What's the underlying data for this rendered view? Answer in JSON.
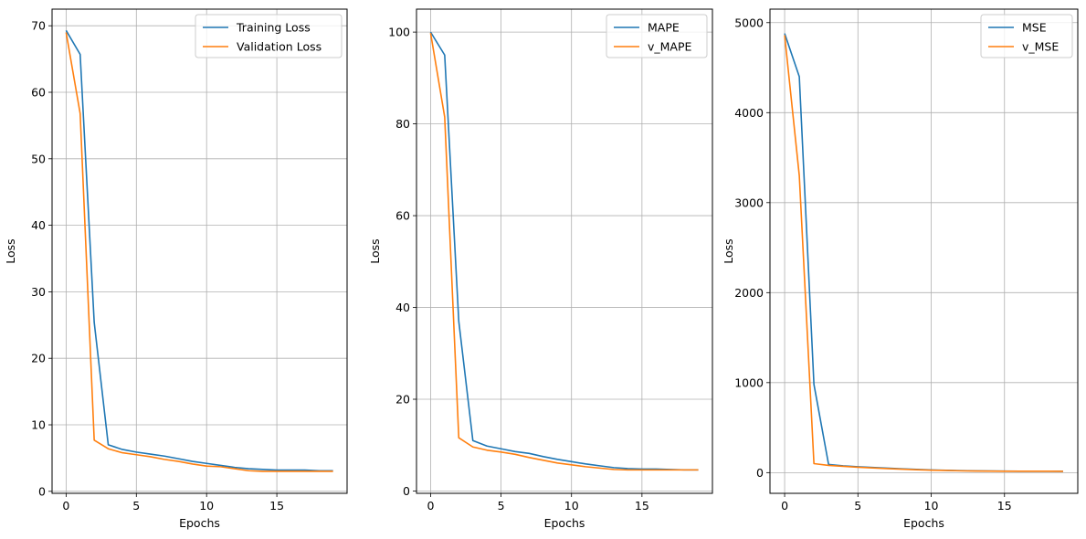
{
  "colors": {
    "series_1": "#1f77b4",
    "series_2": "#ff7f0e",
    "grid": "#b0b0b0",
    "axes": "#000000"
  },
  "chart_data": [
    {
      "type": "line",
      "title": "",
      "xlabel": "Epochs",
      "ylabel": "Loss",
      "xlim": [
        -1,
        20
      ],
      "ylim": [
        -0.3,
        72.5
      ],
      "xticks": [
        0,
        5,
        10,
        15
      ],
      "yticks": [
        0,
        10,
        20,
        30,
        40,
        50,
        60,
        70
      ],
      "grid": true,
      "legend_position": "upper right",
      "x": [
        0,
        1,
        2,
        3,
        4,
        5,
        6,
        7,
        8,
        9,
        10,
        11,
        12,
        13,
        14,
        15,
        16,
        17,
        18,
        19
      ],
      "series": [
        {
          "name": "Training Loss",
          "values": [
            69.3,
            65.7,
            25.4,
            7.0,
            6.3,
            5.9,
            5.6,
            5.3,
            4.9,
            4.5,
            4.2,
            3.9,
            3.6,
            3.4,
            3.3,
            3.2,
            3.2,
            3.2,
            3.1,
            3.1
          ]
        },
        {
          "name": "Validation Loss",
          "values": [
            69.0,
            56.8,
            7.7,
            6.4,
            5.8,
            5.5,
            5.2,
            4.8,
            4.5,
            4.1,
            3.8,
            3.7,
            3.4,
            3.1,
            3.0,
            3.0,
            3.0,
            3.0,
            3.0,
            3.0
          ]
        }
      ]
    },
    {
      "type": "line",
      "title": "",
      "xlabel": "Epochs",
      "ylabel": "Loss",
      "xlim": [
        -1,
        20
      ],
      "ylim": [
        -0.5,
        105
      ],
      "xticks": [
        0,
        5,
        10,
        15
      ],
      "yticks": [
        0,
        20,
        40,
        60,
        80,
        100
      ],
      "grid": true,
      "legend_position": "upper right",
      "x": [
        0,
        1,
        2,
        3,
        4,
        5,
        6,
        7,
        8,
        9,
        10,
        11,
        12,
        13,
        14,
        15,
        16,
        17,
        18,
        19
      ],
      "series": [
        {
          "name": "MAPE",
          "values": [
            100.0,
            95.0,
            37.0,
            11.0,
            9.8,
            9.2,
            8.6,
            8.2,
            7.5,
            6.9,
            6.4,
            5.9,
            5.5,
            5.1,
            4.9,
            4.8,
            4.8,
            4.7,
            4.6,
            4.6
          ]
        },
        {
          "name": "v_MAPE",
          "values": [
            99.8,
            81.5,
            11.6,
            9.6,
            8.9,
            8.5,
            8.0,
            7.3,
            6.7,
            6.1,
            5.7,
            5.3,
            5.0,
            4.7,
            4.6,
            4.6,
            4.6,
            4.6,
            4.6,
            4.6
          ]
        }
      ]
    },
    {
      "type": "line",
      "title": "",
      "xlabel": "Epochs",
      "ylabel": "Loss",
      "xlim": [
        -1,
        20
      ],
      "ylim": [
        -230,
        5150
      ],
      "xticks": [
        0,
        5,
        10,
        15
      ],
      "yticks": [
        0,
        1000,
        2000,
        3000,
        4000,
        5000
      ],
      "grid": true,
      "legend_position": "upper right",
      "x": [
        0,
        1,
        2,
        3,
        4,
        5,
        6,
        7,
        8,
        9,
        10,
        11,
        12,
        13,
        14,
        15,
        16,
        17,
        18,
        19
      ],
      "series": [
        {
          "name": "MSE",
          "values": [
            4880,
            4400,
            980,
            90,
            75,
            65,
            58,
            50,
            42,
            36,
            30,
            26,
            22,
            20,
            18,
            17,
            16,
            16,
            15,
            15
          ]
        },
        {
          "name": "v_MSE",
          "values": [
            4860,
            3300,
            100,
            80,
            70,
            60,
            52,
            45,
            38,
            32,
            27,
            24,
            20,
            18,
            17,
            16,
            15,
            15,
            15,
            14
          ]
        }
      ]
    }
  ]
}
